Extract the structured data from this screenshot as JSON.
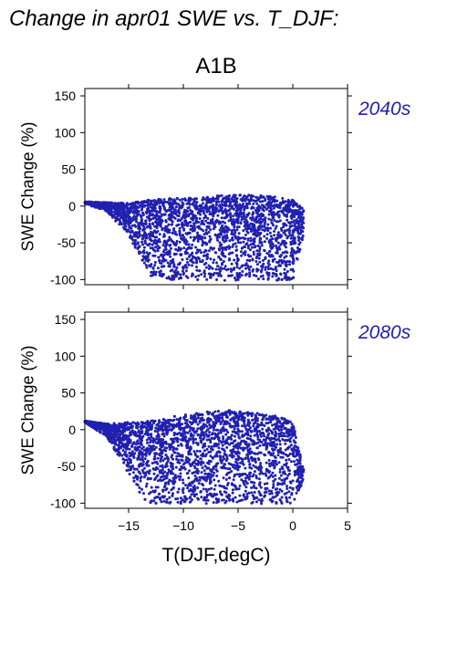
{
  "page_title": "Change in apr01 SWE vs. T_DJF:",
  "scenario": "A1B",
  "point_color": "#2020b0",
  "chart_data": [
    {
      "type": "scatter",
      "panel_label": "2040s",
      "ylabel": "SWE Change (%)",
      "xlabel": "T(DJF,degC)",
      "xlim": [
        -19,
        5
      ],
      "ylim": [
        -107,
        160
      ],
      "x_ticks": [
        -15,
        -10,
        -5,
        0,
        5
      ],
      "y_ticks": [
        150,
        100,
        50,
        0,
        -50,
        -100
      ],
      "envelope": {
        "x": [
          -19,
          -17,
          -15,
          -13,
          -11,
          -9,
          -7,
          -5,
          -3,
          -1,
          0,
          1
        ],
        "upper": [
          6,
          5,
          4,
          9,
          11,
          12,
          14,
          15,
          15,
          12,
          10,
          -5
        ],
        "lower": [
          3,
          -7,
          -40,
          -95,
          -101,
          -101,
          -101,
          -101,
          -101,
          -101,
          -101,
          -40
        ]
      },
      "x": [
        -18.5,
        -17.8,
        -17.0,
        -16.2,
        -15.5,
        -15.0,
        -14.5,
        -14.0,
        -13.5,
        -13.0,
        -12.5,
        -12.0,
        -11.5,
        -11.0,
        -10.5,
        -10.0,
        -9.5,
        -9.0,
        -8.5,
        -8.0,
        -7.5,
        -7.0,
        -6.5,
        -6.0,
        -5.5,
        -5.0,
        -4.5,
        -4.0,
        -3.5,
        -3.0,
        -2.5,
        -2.0,
        -1.5,
        -1.0,
        -0.5,
        0.0,
        0.5,
        -15.8,
        -14.8,
        -13.8,
        -12.8,
        -11.8,
        -10.8,
        -9.8,
        -8.8,
        -7.8,
        -6.8,
        -5.8,
        -4.8,
        -3.8,
        -2.8,
        -1.8,
        -0.8,
        0.8
      ],
      "y": [
        5,
        4,
        2,
        -5,
        -14,
        -25,
        -40,
        -55,
        -70,
        -82,
        -90,
        -95,
        -98,
        -95,
        -90,
        -85,
        -80,
        -70,
        -60,
        -50,
        -45,
        -40,
        -35,
        -30,
        -25,
        -20,
        -15,
        -10,
        -30,
        -50,
        -70,
        -85,
        -95,
        -100,
        -98,
        -70,
        -30,
        0,
        -2,
        -5,
        -3,
        0,
        5,
        8,
        10,
        12,
        13,
        14,
        15,
        14,
        12,
        10,
        5,
        -25
      ]
    },
    {
      "type": "scatter",
      "panel_label": "2080s",
      "ylabel": "SWE Change (%)",
      "xlabel": "T(DJF,degC)",
      "xlim": [
        -19,
        5
      ],
      "ylim": [
        -107,
        160
      ],
      "x_ticks": [
        -15,
        -10,
        -5,
        0,
        5
      ],
      "y_ticks": [
        150,
        100,
        50,
        0,
        -50,
        -100
      ],
      "envelope": {
        "x": [
          -19,
          -17,
          -15,
          -13,
          -11,
          -9,
          -7,
          -5,
          -3,
          -1,
          0,
          1
        ],
        "upper": [
          12,
          8,
          10,
          12,
          14,
          20,
          25,
          26,
          22,
          18,
          10,
          -55
        ],
        "lower": [
          10,
          -10,
          -60,
          -100,
          -101,
          -101,
          -101,
          -101,
          -101,
          -101,
          -101,
          -70
        ]
      },
      "x": [
        -18.5,
        -17.8,
        -17.0,
        -16.2,
        -15.5,
        -15.0,
        -14.5,
        -14.0,
        -13.5,
        -13.0,
        -12.5,
        -12.0,
        -11.5,
        -11.0,
        -10.5,
        -10.0,
        -9.5,
        -9.0,
        -8.5,
        -8.0,
        -7.5,
        -7.0,
        -6.5,
        -6.0,
        -5.5,
        -5.0,
        -4.5,
        -4.0,
        -3.5,
        -3.0,
        -2.5,
        -2.0,
        -1.5,
        -1.0,
        -0.5,
        0.0,
        0.5,
        -15.8,
        -14.8,
        -13.8,
        -12.8,
        -11.8,
        -10.8,
        -9.8,
        -8.8,
        -7.8,
        -6.8,
        -5.8,
        -4.8,
        -3.8,
        -2.8,
        -1.8,
        -0.8,
        0.8
      ],
      "y": [
        11,
        8,
        0,
        -20,
        -40,
        -55,
        -70,
        -85,
        -95,
        -99,
        -100,
        -98,
        -95,
        -90,
        -85,
        -80,
        -75,
        -70,
        -65,
        -60,
        -55,
        -50,
        -45,
        -40,
        -35,
        -30,
        -25,
        -20,
        -40,
        -60,
        -80,
        -95,
        -100,
        -100,
        -98,
        -80,
        -60,
        5,
        8,
        10,
        12,
        14,
        18,
        20,
        22,
        24,
        25,
        26,
        24,
        22,
        20,
        18,
        15,
        -58
      ]
    }
  ]
}
